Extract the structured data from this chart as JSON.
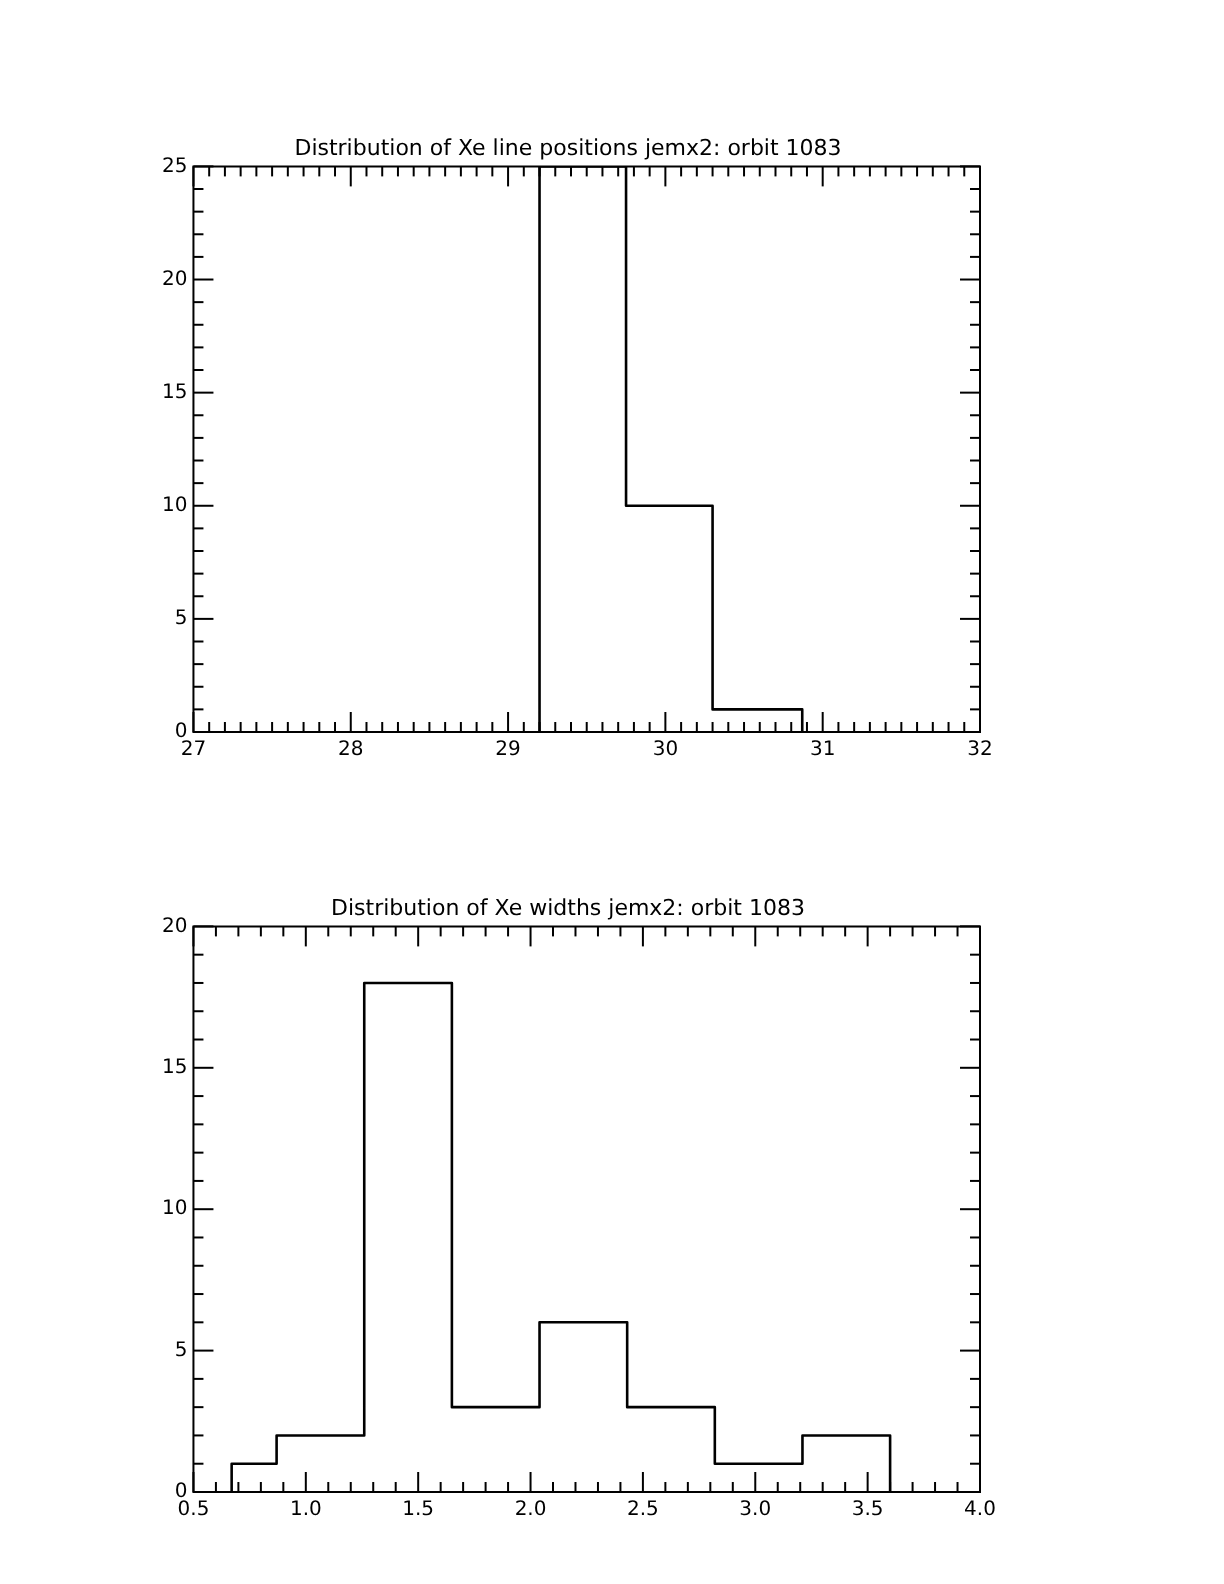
{
  "chart_data": [
    {
      "type": "histogram",
      "title": "Distribution of Xe line positions jemx2: orbit 1083",
      "bins": [
        29.2,
        29.75,
        30.3,
        30.87
      ],
      "values": [
        25,
        10,
        1
      ],
      "color": "#000000",
      "xlim": [
        27,
        32
      ],
      "ylim": [
        0,
        25
      ],
      "xticks": [
        27,
        28,
        29,
        30,
        31,
        32
      ],
      "yticks": [
        0,
        5,
        10,
        15,
        20,
        25
      ]
    },
    {
      "type": "histogram",
      "title": "Distribution of Xe widths jemx2: orbit 1083",
      "bins": [
        0.67,
        0.87,
        1.26,
        1.65,
        2.04,
        2.43,
        2.82,
        3.21,
        3.6
      ],
      "values": [
        1,
        2,
        18,
        3,
        6,
        3,
        1,
        2
      ],
      "color": "#000000",
      "xlim": [
        0.5,
        4.0
      ],
      "ylim": [
        0,
        20
      ],
      "xticks": [
        {
          "value": 0.5,
          "label": "0.5"
        },
        {
          "value": 1,
          "label": "1.0"
        },
        {
          "value": 1.5,
          "label": "1.5"
        },
        {
          "value": 2,
          "label": "2.0"
        },
        {
          "value": 2.5,
          "label": "2.5"
        },
        {
          "value": 3,
          "label": "3.0"
        },
        {
          "value": 3.5,
          "label": "3.5"
        },
        {
          "value": 4,
          "label": "4.0"
        }
      ],
      "yticks": [
        0,
        5,
        10,
        15,
        20
      ]
    }
  ]
}
